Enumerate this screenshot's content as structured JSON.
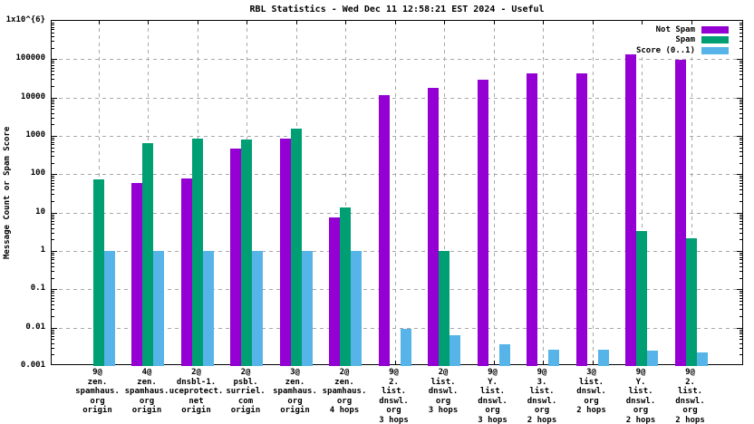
{
  "chart_data": {
    "type": "bar",
    "title": "RBL Statistics - Wed Dec 11 12:58:21 EST 2024 - Useful",
    "ylabel": "Message Count or Spam Score",
    "yscale": "log",
    "ylim": [
      0.001,
      1000000
    ],
    "grid": true,
    "legend_position": "top-right-inside",
    "colors": {
      "not_spam": "#9400D3",
      "spam": "#009E73",
      "score": "#56B4E9",
      "grid": "#a8a8a8",
      "axis": "#000000",
      "background": "#ffffff"
    },
    "yticks": [
      {
        "value": 1000000,
        "label": "1x10^{6}"
      },
      {
        "value": 100000,
        "label": "100000"
      },
      {
        "value": 10000,
        "label": "10000"
      },
      {
        "value": 1000,
        "label": "1000"
      },
      {
        "value": 100,
        "label": "100"
      },
      {
        "value": 10,
        "label": "10"
      },
      {
        "value": 1,
        "label": "1"
      },
      {
        "value": 0.1,
        "label": "0.1"
      },
      {
        "value": 0.01,
        "label": "0.01"
      },
      {
        "value": 0.001,
        "label": "0.001"
      }
    ],
    "categories": [
      [
        "9@",
        "zen.",
        "spamhaus.",
        "org",
        "origin"
      ],
      [
        "4@",
        "zen.",
        "spamhaus.",
        "org",
        "origin"
      ],
      [
        "2@",
        "dnsbl-1.",
        "uceprotect.",
        "net",
        "origin"
      ],
      [
        "2@",
        "psbl.",
        "surriel.",
        "com",
        "origin"
      ],
      [
        "3@",
        "zen.",
        "spamhaus.",
        "org",
        "origin"
      ],
      [
        "2@",
        "zen.",
        "spamhaus.",
        "org",
        "4 hops"
      ],
      [
        "9@",
        "2.",
        "list.",
        "dnswl.",
        "org",
        "3 hops"
      ],
      [
        "2@",
        "list.",
        "dnswl.",
        "org",
        "3 hops"
      ],
      [
        "9@",
        "Y.",
        "list.",
        "dnswl.",
        "org",
        "3 hops"
      ],
      [
        "9@",
        "3.",
        "list.",
        "dnswl.",
        "org",
        "2 hops"
      ],
      [
        "3@",
        "list.",
        "dnswl.",
        "org",
        "2 hops"
      ],
      [
        "9@",
        "Y.",
        "list.",
        "dnswl.",
        "org",
        "2 hops"
      ],
      [
        "9@",
        "2.",
        "list.",
        "dnswl.",
        "org",
        "2 hops"
      ]
    ],
    "series": [
      {
        "name": "Not Spam",
        "color_key": "not_spam",
        "values": [
          null,
          58,
          78,
          470,
          840,
          7.6,
          11500,
          17700,
          28600,
          42000,
          42000,
          136000,
          99000
        ]
      },
      {
        "name": "Spam",
        "color_key": "spam",
        "values": [
          73,
          640,
          830,
          820,
          1540,
          13.5,
          null,
          1.0,
          null,
          null,
          null,
          3.3,
          2.2
        ]
      },
      {
        "name": "Score (0..1)",
        "color_key": "score",
        "values": [
          1,
          1,
          1,
          1,
          1,
          1,
          0.0095,
          0.0065,
          0.0037,
          0.0027,
          0.0027,
          0.0025,
          0.0023
        ]
      }
    ]
  }
}
